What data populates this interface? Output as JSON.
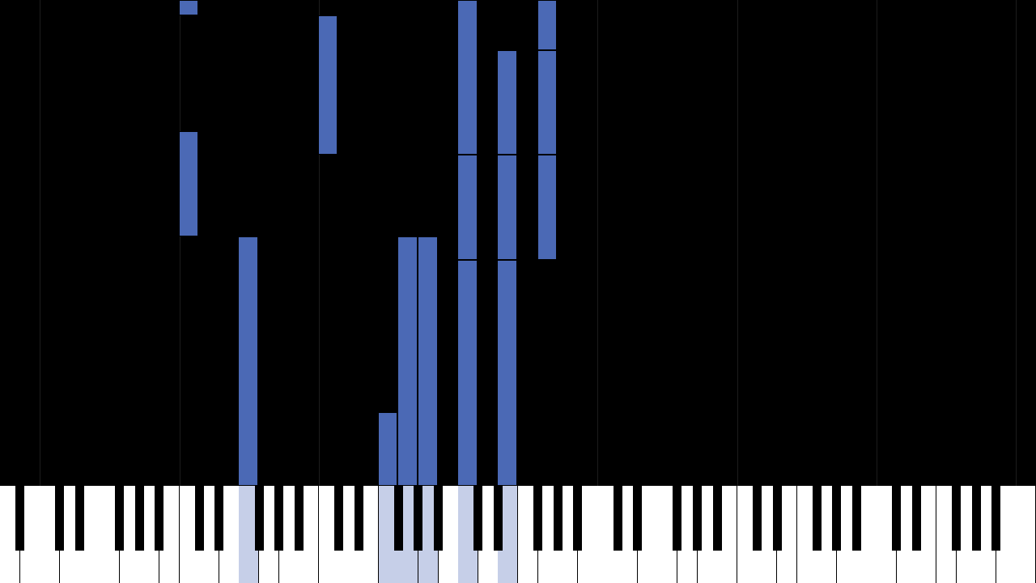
{
  "theme": {
    "background": "#000000",
    "note_color": "#4b69b5",
    "pressed_key_color": "#c6cfe8",
    "white_key_color": "#ffffff",
    "black_key_color": "#000000",
    "octave_line_color": "#1c1c1c"
  },
  "piano": {
    "white_key_count": 52,
    "lowest_key": "A0",
    "highest_key": "C8"
  },
  "pressed_white_keys": [
    12,
    19,
    20,
    21,
    23,
    25
  ],
  "notes": [
    {
      "key": 9,
      "start": 0.0,
      "end": 0.6
    },
    {
      "key": 9,
      "start": 5.0,
      "end": 9.0
    },
    {
      "key": 16,
      "start": 0.6,
      "end": 5.9
    },
    {
      "key": 12,
      "start": 9.0,
      "end": 18.5
    },
    {
      "key": 19,
      "start": 15.7,
      "end": 18.5
    },
    {
      "key": 20,
      "start": 9.0,
      "end": 18.5
    },
    {
      "key": 21,
      "start": 9.0,
      "end": 18.5
    },
    {
      "key": 23,
      "start": 0.0,
      "end": 5.9
    },
    {
      "key": 23,
      "start": 5.9,
      "end": 9.9
    },
    {
      "key": 23,
      "start": 9.9,
      "end": 18.5
    },
    {
      "key": 25,
      "start": 1.9,
      "end": 5.9
    },
    {
      "key": 25,
      "start": 5.9,
      "end": 9.9
    },
    {
      "key": 25,
      "start": 9.9,
      "end": 18.5
    },
    {
      "key": 27,
      "start": 0.0,
      "end": 1.9
    },
    {
      "key": 27,
      "start": 1.9,
      "end": 5.9
    },
    {
      "key": 27,
      "start": 5.9,
      "end": 9.9
    }
  ]
}
